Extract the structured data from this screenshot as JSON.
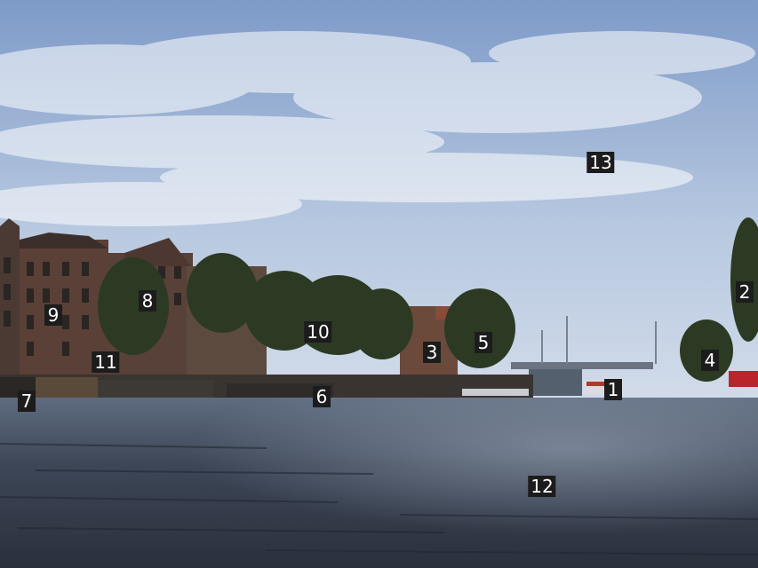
{
  "markers": [
    {
      "id": "1",
      "label": "1"
    },
    {
      "id": "2",
      "label": "2"
    },
    {
      "id": "3",
      "label": "3"
    },
    {
      "id": "4",
      "label": "4"
    },
    {
      "id": "5",
      "label": "5"
    },
    {
      "id": "6",
      "label": "6"
    },
    {
      "id": "7",
      "label": "7"
    },
    {
      "id": "8",
      "label": "8"
    },
    {
      "id": "9",
      "label": "9"
    },
    {
      "id": "10",
      "label": "10"
    },
    {
      "id": "11",
      "label": "11"
    },
    {
      "id": "12",
      "label": "12"
    },
    {
      "id": "13",
      "label": "13"
    }
  ],
  "colors": {
    "sky_top": "#7d9ac8",
    "sky_bottom": "#c9d6e8",
    "water": "#3b4455",
    "trees": "#2c3a24",
    "buildings": "#4a3a33"
  }
}
